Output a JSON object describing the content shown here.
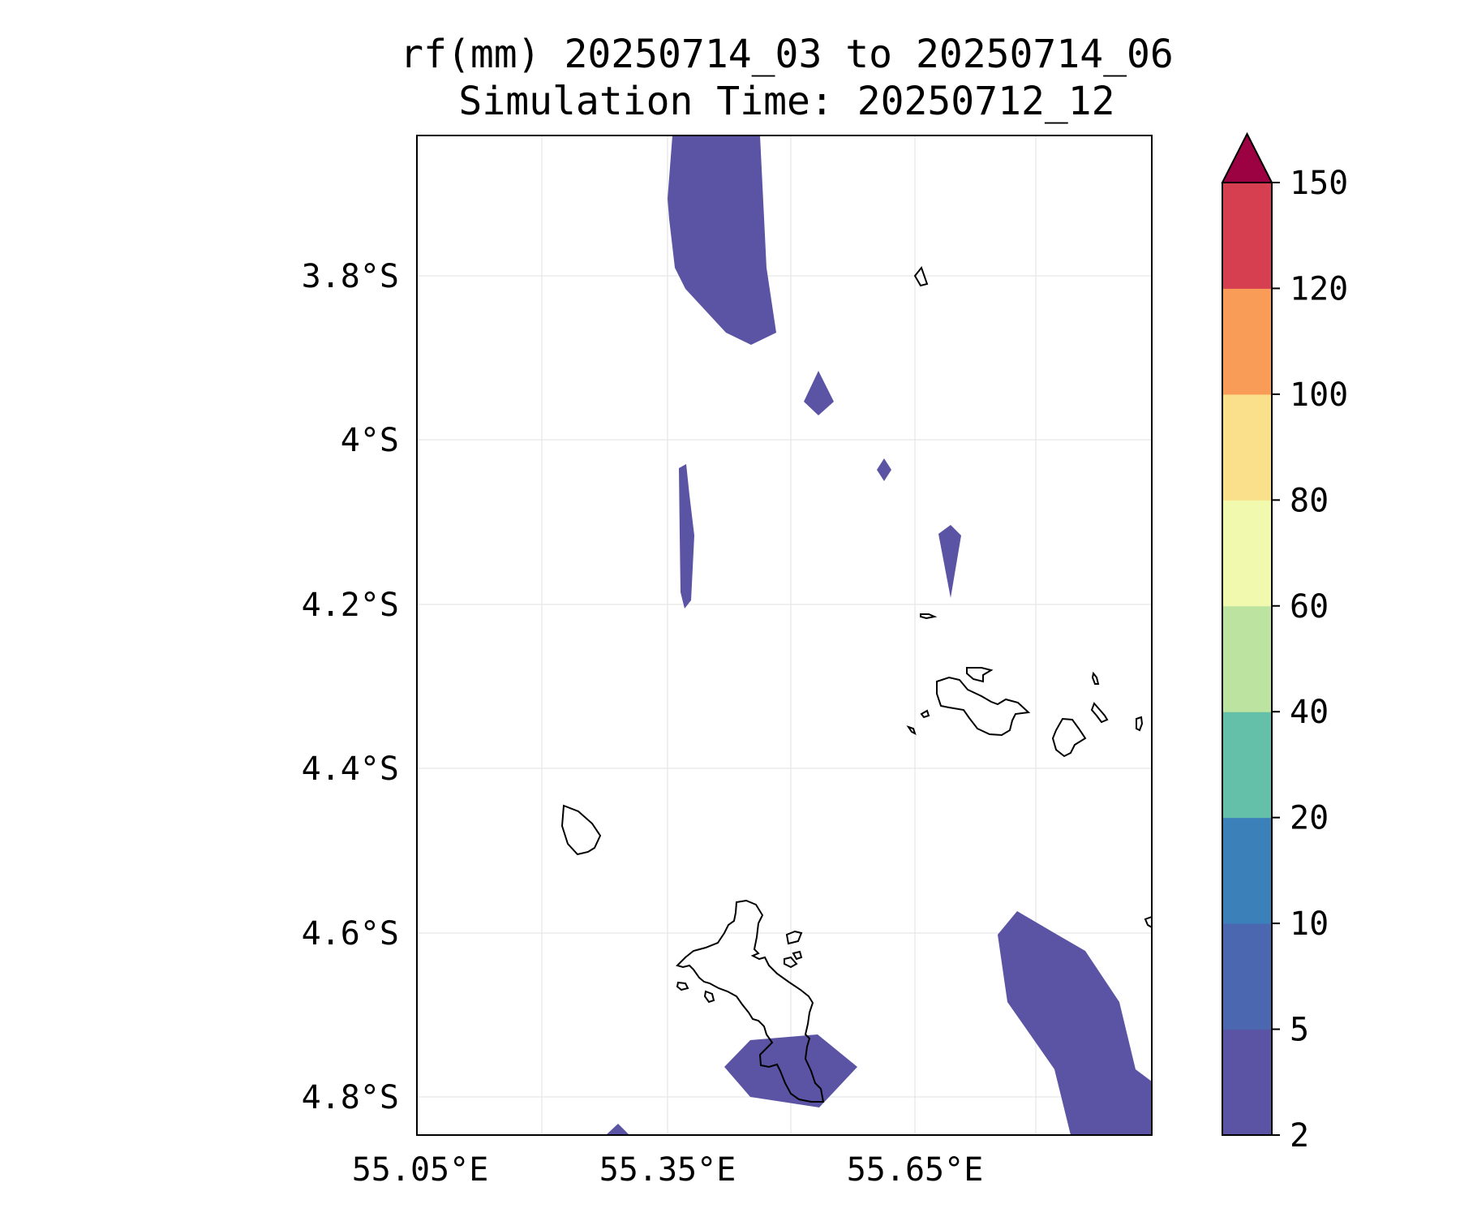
{
  "title": {
    "line1": "rf(mm) 20250714_03 to 20250714_06",
    "line2": "Simulation Time: 20250712_12"
  },
  "map": {
    "lon_ticks": [
      "55.05°E",
      "55.35°E",
      "55.65°E"
    ],
    "lat_ticks": [
      "3.8°S",
      "4°S",
      "4.2°S",
      "4.4°S",
      "4.6°S",
      "4.8°S"
    ],
    "grid": true,
    "shaded_class_color": "#5b54a4",
    "coastline_color": "#000000"
  },
  "colorbar": {
    "levels": [
      "2",
      "5",
      "10",
      "20",
      "40",
      "60",
      "80",
      "100",
      "120",
      "150"
    ],
    "colors": [
      "#5b54a4",
      "#4a67af",
      "#3c80ba",
      "#65c0a9",
      "#bce3a0",
      "#f1f9ae",
      "#fbe08b",
      "#f99c58",
      "#d53f50"
    ],
    "extend_color": "#9c0142",
    "extend": "max"
  }
}
